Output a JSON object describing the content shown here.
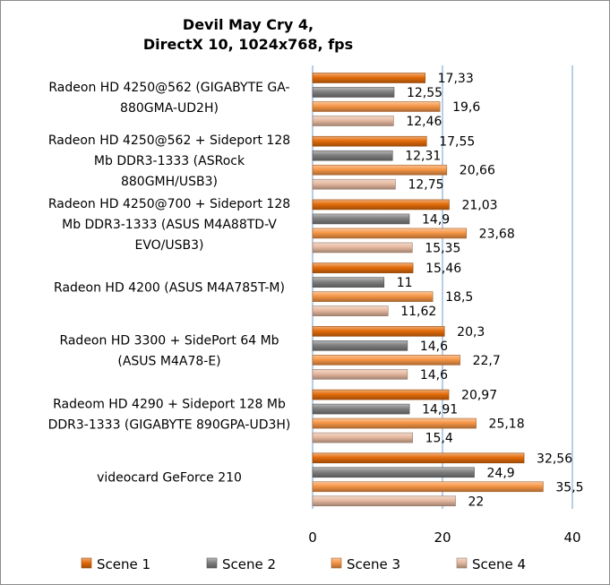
{
  "chart_data": {
    "type": "bar",
    "orientation": "horizontal",
    "title": [
      "Devil May Cry 4,",
      "DirectX 10, 1024x768, fps"
    ],
    "categories": [
      [
        "Radeon HD 4250@562 (GIGABYTE GA-",
        "880GMA-UD2H)"
      ],
      [
        "Radeon HD 4250@562 + Sideport 128",
        "Mb DDR3-1333 (ASRock",
        "880GMH/USB3)"
      ],
      [
        "Radeon HD 4250@700 + Sideport 128",
        "Mb DDR3-1333 (ASUS M4A88TD-V",
        "EVO/USB3)"
      ],
      [
        "Radeon HD 4200 (ASUS M4A785T-M)"
      ],
      [
        "Radeon HD 3300 + SidePort 64 Mb",
        "(ASUS M4A78-E)"
      ],
      [
        "Radeom HD 4290 + Sideport 128 Mb",
        "DDR3-1333 (GIGABYTE 890GPA-UD3H)"
      ],
      [
        "videocard GeForce 210"
      ]
    ],
    "series": [
      {
        "name": "Scene 1",
        "color": "#E46C0A",
        "values": [
          17.33,
          17.55,
          21.03,
          15.46,
          20.3,
          20.97,
          32.56
        ],
        "labels": [
          "17,33",
          "17,55",
          "21,03",
          "15,46",
          "20,3",
          "20,97",
          "32,56"
        ]
      },
      {
        "name": "Scene 2",
        "color": "#7F7F7F",
        "values": [
          12.55,
          12.31,
          14.9,
          11,
          14.6,
          14.91,
          24.9
        ],
        "labels": [
          "12,55",
          "12,31",
          "14,9",
          "11",
          "14,6",
          "14,91",
          "24,9"
        ]
      },
      {
        "name": "Scene 3",
        "color": "#F79646",
        "values": [
          19.6,
          20.66,
          23.68,
          18.5,
          22.7,
          25.18,
          35.5
        ],
        "labels": [
          "19,6",
          "20,66",
          "23,68",
          "18,5",
          "22,7",
          "25,18",
          "35,5"
        ]
      },
      {
        "name": "Scene 4",
        "color": "#E6B9A0",
        "values": [
          12.46,
          12.75,
          15.35,
          11.62,
          14.6,
          15.4,
          22
        ],
        "labels": [
          "12,46",
          "12,75",
          "15,35",
          "11,62",
          "14,6",
          "15,4",
          "22"
        ]
      }
    ],
    "xlim": [
      0,
      40
    ],
    "xticks": [
      "0",
      "20",
      "40"
    ],
    "grid": true,
    "legend_position": "bottom"
  }
}
